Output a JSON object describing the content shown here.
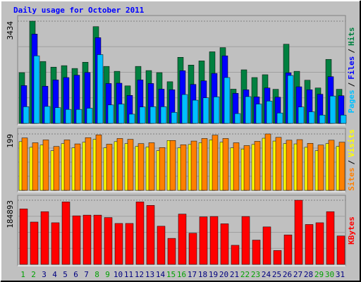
{
  "chart_data": {
    "type": "bar",
    "title": "Daily usage for October 2011",
    "categories": [
      "1",
      "2",
      "3",
      "4",
      "5",
      "6",
      "7",
      "8",
      "9",
      "10",
      "11",
      "12",
      "13",
      "14",
      "15",
      "16",
      "17",
      "18",
      "19",
      "20",
      "21",
      "22",
      "23",
      "24",
      "25",
      "26",
      "27",
      "28",
      "29",
      "30",
      "31"
    ],
    "category_colors": [
      "#00a000",
      "#00a000",
      "#000080",
      "#000080",
      "#000080",
      "#000080",
      "#000080",
      "#00a000",
      "#00a000",
      "#000080",
      "#000080",
      "#000080",
      "#000080",
      "#000080",
      "#00a000",
      "#00a000",
      "#000080",
      "#000080",
      "#000080",
      "#000080",
      "#000080",
      "#00a000",
      "#00a000",
      "#000080",
      "#000080",
      "#000080",
      "#000080",
      "#000080",
      "#00a000",
      "#00a000",
      "#000080"
    ],
    "legend_separator": "/",
    "panels": [
      {
        "ylim": [
          0,
          3434
        ],
        "yticks": [
          3434
        ],
        "series": [
          {
            "name": "Hits",
            "color": "#008040",
            "values": [
              1705,
              3434,
              2080,
              1890,
              1940,
              1845,
              2055,
              3250,
              1915,
              1750,
              1260,
              1915,
              1775,
              1705,
              1400,
              2220,
              1960,
              2100,
              2405,
              2545,
              1150,
              1800,
              1540,
              1635,
              1145,
              2660,
              1750,
              1450,
              1190,
              2150,
              1145
            ]
          },
          {
            "name": "Files",
            "color": "#0000ff",
            "values": [
              1270,
              3000,
              1250,
              1460,
              1540,
              1620,
              1710,
              2880,
              1340,
              1350,
              940,
              1460,
              1340,
              1150,
              1130,
              1770,
              1310,
              1430,
              1680,
              2270,
              1010,
              1130,
              890,
              1190,
              880,
              1700,
              1230,
              1130,
              980,
              1570,
              930
            ]
          },
          {
            "name": "Pages",
            "color": "#00c0ff",
            "values": [
              560,
              2270,
              570,
              530,
              470,
              470,
              510,
              2310,
              620,
              650,
              310,
              550,
              560,
              560,
              370,
              970,
              780,
              860,
              890,
              1540,
              330,
              900,
              650,
              750,
              350,
              1610,
              550,
              390,
              280,
              920,
              280
            ]
          }
        ]
      },
      {
        "ylim": [
          0,
          199
        ],
        "yticks": [
          199
        ],
        "series": [
          {
            "name": "Visits",
            "color": "#ffff00",
            "values": [
              172,
              152,
              160,
              140,
              165,
              150,
              170,
              180,
              150,
              172,
              165,
              155,
              153,
              140,
              176,
              150,
              162,
              168,
              178,
              170,
              150,
              146,
              162,
              184,
              174,
              165,
              164,
              152,
              140,
              165,
              155
            ]
          },
          {
            "name": "Sites",
            "color": "#ff8000",
            "values": [
              185,
              168,
              178,
              155,
              178,
              164,
              186,
              196,
              163,
              183,
              180,
              165,
              168,
              151,
              176,
              161,
              174,
              183,
              195,
              183,
              168,
              158,
              173,
              199,
              187,
              177,
              179,
              166,
              160,
              177,
              170
            ]
          }
        ]
      },
      {
        "ylim": [
          0,
          184893
        ],
        "yticks": [
          184893
        ],
        "series": [
          {
            "name": "KBytes",
            "color": "#ff0000",
            "values": [
              160000,
              122000,
              152000,
              120000,
              180000,
              140000,
              142000,
              142000,
              135000,
              118000,
              118000,
              180000,
              170000,
              110000,
              75000,
              145000,
              90000,
              137000,
              138000,
              117000,
              55000,
              138000,
              70000,
              108000,
              40000,
              85000,
              184893,
              115000,
              120000,
              152000,
              82000
            ]
          }
        ]
      }
    ]
  }
}
